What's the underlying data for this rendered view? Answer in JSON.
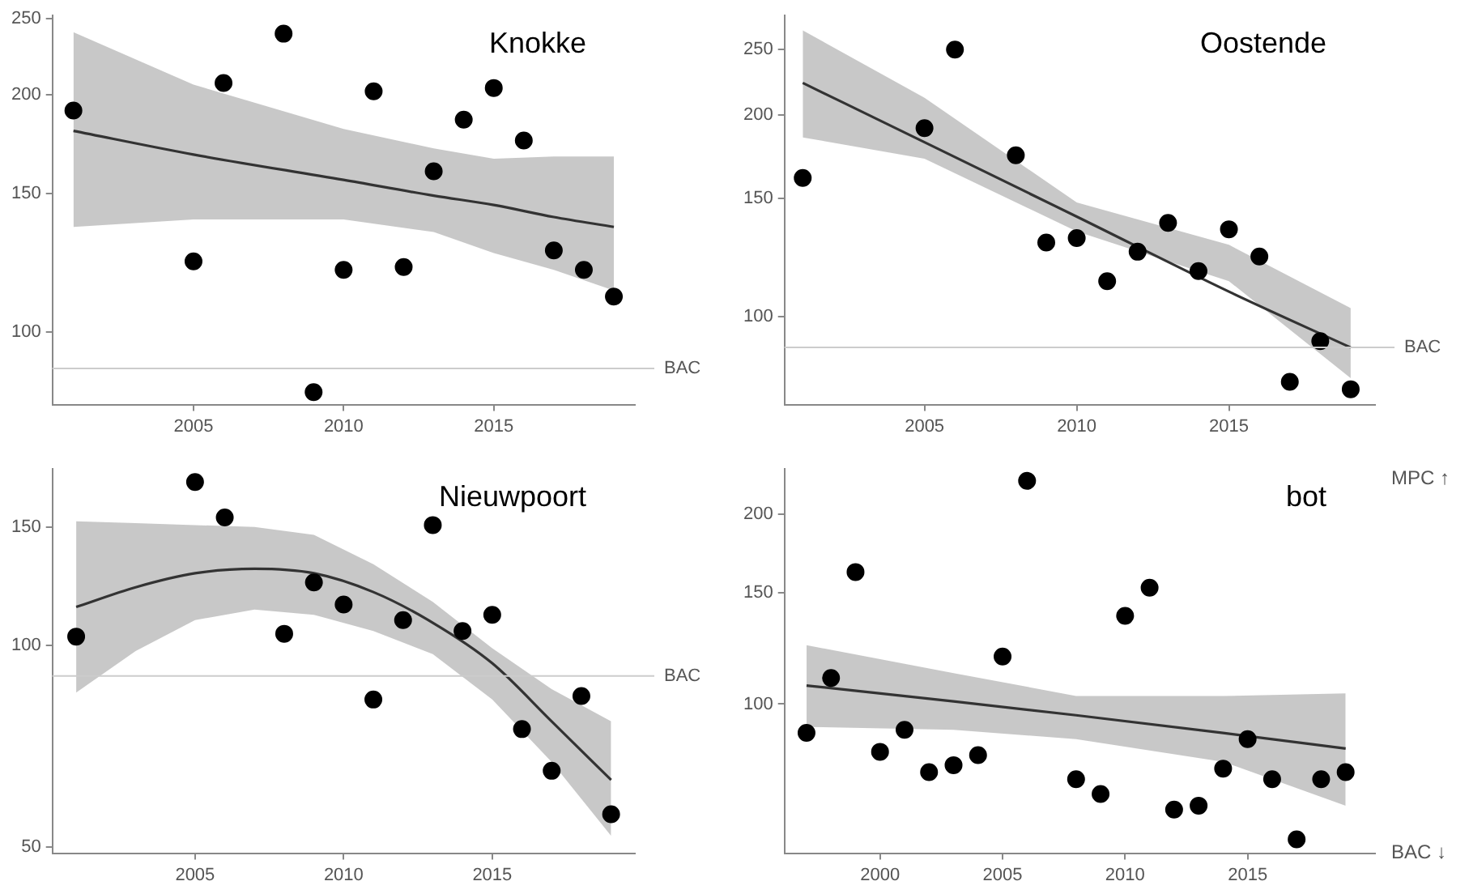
{
  "chart_data": [
    {
      "type": "scatter",
      "title": "Knokke",
      "log": "y",
      "grid": false,
      "legend": false,
      "xlim": [
        2000.3,
        2019.7
      ],
      "xticks": [
        2005,
        2010,
        2015
      ],
      "ylim": [
        81,
        252
      ],
      "yticks": [
        100,
        150,
        200,
        250
      ],
      "ref_lines": [
        {
          "axis": "y",
          "value": 90,
          "label": "BAC"
        }
      ],
      "series": [
        {
          "type": "line",
          "marker": "none",
          "color": "#333333",
          "x": [
            2001,
            2005,
            2010,
            2013,
            2015,
            2017,
            2019
          ],
          "values": [
            180,
            168,
            156,
            149,
            145,
            140,
            136
          ],
          "lower": [
            136,
            139,
            139,
            134,
            126,
            120,
            113
          ],
          "upper": [
            240,
            206,
            181,
            171,
            166,
            167,
            167
          ]
        },
        {
          "type": "scatter",
          "marker": "circle",
          "color": "#000000",
          "x": [
            2001,
            2005,
            2006,
            2008,
            2009,
            2010,
            2011,
            2012,
            2013,
            2014,
            2015,
            2016,
            2017,
            2018,
            2019
          ],
          "values": [
            191,
            123,
            207,
            239,
            84,
            120,
            202,
            121,
            160,
            186,
            204,
            175,
            127,
            120,
            111
          ]
        }
      ]
    },
    {
      "type": "scatter",
      "title": "Oostende",
      "log": "y",
      "grid": false,
      "legend": false,
      "xlim": [
        2000.4,
        2019.8
      ],
      "xticks": [
        2005,
        2010,
        2015
      ],
      "ylim": [
        74,
        281
      ],
      "yticks": [
        100,
        150,
        200,
        250
      ],
      "ref_lines": [
        {
          "axis": "y",
          "value": 90,
          "label": "BAC"
        }
      ],
      "series": [
        {
          "type": "line",
          "marker": "none",
          "color": "#333333",
          "x": [
            2001,
            2005,
            2010,
            2015,
            2019
          ],
          "values": [
            223,
            182,
            141,
            109,
            90
          ],
          "lower": [
            185,
            172,
            134,
            113,
            81
          ],
          "upper": [
            267,
            212,
            148,
            128,
            103
          ]
        },
        {
          "type": "scatter",
          "marker": "circle",
          "color": "#000000",
          "x": [
            2001,
            2005,
            2006,
            2008,
            2009,
            2010,
            2011,
            2012,
            2013,
            2014,
            2015,
            2016,
            2017,
            2018,
            2019
          ],
          "values": [
            161,
            191,
            250,
            174,
            129,
            131,
            113,
            125,
            138,
            117,
            135,
            123,
            80,
            92,
            78
          ]
        }
      ]
    },
    {
      "type": "scatter",
      "title": "Nieuwpoort",
      "log": "y",
      "grid": false,
      "legend": false,
      "xlim": [
        2000.2,
        2019.8
      ],
      "xticks": [
        2005,
        2010,
        2015
      ],
      "ylim": [
        49,
        183
      ],
      "yticks": [
        50,
        100,
        150
      ],
      "ref_lines": [
        {
          "axis": "y",
          "value": 90,
          "label": "BAC"
        }
      ],
      "series": [
        {
          "type": "line",
          "marker": "none",
          "color": "#333333",
          "x": [
            2001,
            2003,
            2005,
            2007,
            2009,
            2011,
            2013,
            2015,
            2017,
            2019
          ],
          "values": [
            114,
            122,
            128,
            130,
            128,
            120,
            108,
            94,
            77,
            63
          ],
          "lower": [
            85,
            98,
            109,
            113,
            111,
            105,
            97,
            83,
            67,
            52
          ],
          "upper": [
            153,
            152,
            151,
            150,
            146,
            132,
            116,
            99,
            86,
            77
          ]
        },
        {
          "type": "scatter",
          "marker": "circle",
          "color": "#000000",
          "x": [
            2001,
            2005,
            2006,
            2008,
            2009,
            2010,
            2011,
            2012,
            2013,
            2014,
            2015,
            2016,
            2017,
            2018,
            2019
          ],
          "values": [
            103,
            175,
            155,
            104,
            124,
            115,
            83,
            109,
            151,
            105,
            111,
            75,
            65,
            84,
            56
          ]
        }
      ]
    },
    {
      "type": "scatter",
      "title": "bot",
      "log": "y",
      "grid": false,
      "legend": false,
      "xlim": [
        1996.1,
        2020.2
      ],
      "xticks": [
        2000,
        2005,
        2010,
        2015
      ],
      "ylim": [
        58,
        236
      ],
      "yticks": [
        100,
        150,
        200
      ],
      "annotations": [
        "MPC ↑",
        "BAC ↓"
      ],
      "series": [
        {
          "type": "line",
          "marker": "none",
          "color": "#333333",
          "x": [
            1997,
            2003,
            2008,
            2014,
            2019
          ],
          "values": [
            107,
            101,
            96,
            90,
            85
          ],
          "lower": [
            92,
            91,
            88,
            81,
            69
          ],
          "upper": [
            124,
            112,
            103,
            103,
            104
          ]
        },
        {
          "type": "scatter",
          "marker": "circle",
          "color": "#000000",
          "x": [
            1997,
            1998,
            1999,
            2000,
            2001,
            2002,
            2003,
            2004,
            2005,
            2006,
            2008,
            2009,
            2010,
            2011,
            2012,
            2013,
            2014,
            2015,
            2016,
            2017,
            2018,
            2019
          ],
          "values": [
            90,
            110,
            162,
            84,
            91,
            78,
            80,
            83,
            119,
            226,
            76,
            72,
            138,
            153,
            68,
            69,
            79,
            88,
            76,
            61,
            76,
            78
          ]
        }
      ]
    }
  ]
}
